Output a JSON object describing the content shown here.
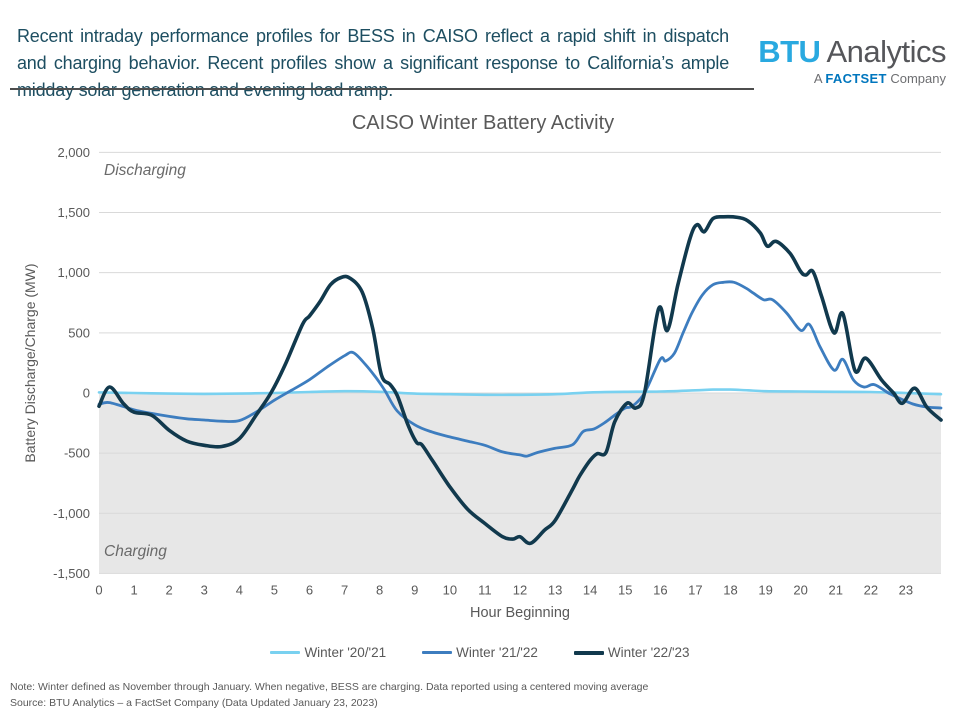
{
  "header": {
    "summary": "Recent intraday performance profiles for BESS in CAISO reflect a rapid shift in dispatch and charging behavior. Recent profiles show a significant response to California’s ample midday solar generation and evening load ramp.",
    "logo": {
      "wordmark_primary": "BTU",
      "wordmark_secondary": "Analytics",
      "tagline_prefix": "A",
      "tagline_brand": "FACTSET",
      "tagline_suffix": "Company"
    }
  },
  "footer": {
    "note": "Note:  Winter defined as November  through January. When negative,  BESS  are charging. Data reported  using a centered  moving average",
    "source": "Source: BTU Analytics – a FactSet Company (Data Updated January 23, 2023)"
  },
  "chart_data": {
    "type": "line",
    "title": "CAISO Winter Battery Activity",
    "xlabel": "Hour Beginning",
    "ylabel": "Battery Discharge/Charge (MW)",
    "xlim": [
      0,
      24
    ],
    "ylim": [
      -1500,
      2000
    ],
    "grid": "horizontal",
    "legend_position": "bottom",
    "gridline_color": "#d9d9d9",
    "tick_color": "#595959",
    "x_ticks": [
      0,
      1,
      2,
      3,
      4,
      5,
      6,
      7,
      8,
      9,
      10,
      11,
      12,
      13,
      14,
      15,
      16,
      17,
      18,
      19,
      20,
      21,
      22,
      23
    ],
    "y_ticks": [
      {
        "value": 2000,
        "label": "2,000"
      },
      {
        "value": 1500,
        "label": "1,500"
      },
      {
        "value": 1000,
        "label": "1,000"
      },
      {
        "value": 500,
        "label": "500"
      },
      {
        "value": 0,
        "label": "0"
      },
      {
        "value": -500,
        "label": "-500"
      },
      {
        "value": -1000,
        "label": "-1,000"
      },
      {
        "value": -1500,
        "label": "-1,500"
      }
    ],
    "annotations": [
      {
        "text": "Discharging",
        "position": "upper-left"
      },
      {
        "text": "Charging",
        "position": "lower-left"
      }
    ],
    "charging_region": {
      "from": 0,
      "to": -1500,
      "color": "#e7e7e7"
    },
    "series": [
      {
        "name": "Winter '20/'21",
        "color": "#79d1f0",
        "width": 2.6,
        "points": [
          [
            0,
            5
          ],
          [
            1,
            0
          ],
          [
            2,
            -5
          ],
          [
            3,
            -8
          ],
          [
            4,
            -5
          ],
          [
            5,
            0
          ],
          [
            6,
            8
          ],
          [
            7,
            15
          ],
          [
            8,
            10
          ],
          [
            9,
            -5
          ],
          [
            10,
            -10
          ],
          [
            11,
            -15
          ],
          [
            12,
            -15
          ],
          [
            13,
            -10
          ],
          [
            14,
            5
          ],
          [
            15,
            10
          ],
          [
            16,
            12
          ],
          [
            17,
            22
          ],
          [
            17.5,
            28
          ],
          [
            18,
            28
          ],
          [
            18.5,
            22
          ],
          [
            19,
            15
          ],
          [
            20,
            12
          ],
          [
            21,
            10
          ],
          [
            22,
            8
          ],
          [
            23,
            0
          ],
          [
            24,
            -10
          ]
        ]
      },
      {
        "name": "Winter '21/'22",
        "color": "#3d7dbf",
        "width": 2.8,
        "points": [
          [
            0,
            -95
          ],
          [
            0.3,
            -80
          ],
          [
            1,
            -140
          ],
          [
            1.5,
            -170
          ],
          [
            2,
            -195
          ],
          [
            2.5,
            -215
          ],
          [
            3,
            -225
          ],
          [
            3.5,
            -235
          ],
          [
            4,
            -230
          ],
          [
            4.5,
            -155
          ],
          [
            5,
            -60
          ],
          [
            5.5,
            25
          ],
          [
            6,
            110
          ],
          [
            6.5,
            215
          ],
          [
            7,
            310
          ],
          [
            7.25,
            335
          ],
          [
            7.6,
            235
          ],
          [
            7.9,
            125
          ],
          [
            8.15,
            20
          ],
          [
            8.5,
            -150
          ],
          [
            9,
            -265
          ],
          [
            9.5,
            -325
          ],
          [
            10,
            -365
          ],
          [
            10.5,
            -400
          ],
          [
            11,
            -435
          ],
          [
            11.5,
            -490
          ],
          [
            12,
            -515
          ],
          [
            12.2,
            -525
          ],
          [
            12.5,
            -495
          ],
          [
            13,
            -460
          ],
          [
            13.5,
            -430
          ],
          [
            13.8,
            -320
          ],
          [
            14.1,
            -300
          ],
          [
            14.4,
            -250
          ],
          [
            14.7,
            -185
          ],
          [
            15,
            -125
          ],
          [
            15.2,
            -110
          ],
          [
            15.55,
            0
          ],
          [
            16,
            280
          ],
          [
            16.15,
            265
          ],
          [
            16.4,
            330
          ],
          [
            16.65,
            500
          ],
          [
            16.9,
            665
          ],
          [
            17.2,
            815
          ],
          [
            17.5,
            900
          ],
          [
            17.8,
            920
          ],
          [
            18.1,
            920
          ],
          [
            18.45,
            870
          ],
          [
            18.65,
            830
          ],
          [
            18.95,
            775
          ],
          [
            19.2,
            775
          ],
          [
            19.6,
            665
          ],
          [
            20,
            520
          ],
          [
            20.25,
            570
          ],
          [
            20.55,
            385
          ],
          [
            20.95,
            190
          ],
          [
            21.2,
            280
          ],
          [
            21.5,
            110
          ],
          [
            21.8,
            50
          ],
          [
            22.1,
            70
          ],
          [
            22.5,
            0
          ],
          [
            22.8,
            -42
          ],
          [
            23.2,
            -92
          ],
          [
            23.6,
            -117
          ],
          [
            24,
            -125
          ]
        ]
      },
      {
        "name": "Winter '22/'23",
        "color": "#11394d",
        "width": 3.6,
        "points": [
          [
            0,
            -110
          ],
          [
            0.3,
            50
          ],
          [
            0.7,
            -90
          ],
          [
            1,
            -160
          ],
          [
            1.5,
            -185
          ],
          [
            2,
            -310
          ],
          [
            2.5,
            -400
          ],
          [
            3,
            -435
          ],
          [
            3.5,
            -445
          ],
          [
            4,
            -380
          ],
          [
            4.5,
            -175
          ],
          [
            4.9,
            0
          ],
          [
            5.3,
            230
          ],
          [
            5.8,
            570
          ],
          [
            6,
            640
          ],
          [
            6.3,
            760
          ],
          [
            6.6,
            900
          ],
          [
            6.9,
            960
          ],
          [
            7.15,
            955
          ],
          [
            7.5,
            840
          ],
          [
            7.8,
            540
          ],
          [
            8.05,
            150
          ],
          [
            8.3,
            70
          ],
          [
            8.5,
            -20
          ],
          [
            8.8,
            -260
          ],
          [
            9.05,
            -410
          ],
          [
            9.2,
            -430
          ],
          [
            9.5,
            -560
          ],
          [
            10,
            -780
          ],
          [
            10.5,
            -965
          ],
          [
            11,
            -1085
          ],
          [
            11.5,
            -1195
          ],
          [
            11.8,
            -1215
          ],
          [
            12,
            -1195
          ],
          [
            12.3,
            -1250
          ],
          [
            12.7,
            -1140
          ],
          [
            13,
            -1060
          ],
          [
            13.5,
            -800
          ],
          [
            13.7,
            -690
          ],
          [
            14,
            -560
          ],
          [
            14.2,
            -505
          ],
          [
            14.45,
            -495
          ],
          [
            14.7,
            -240
          ],
          [
            15.05,
            -85
          ],
          [
            15.3,
            -125
          ],
          [
            15.55,
            0
          ],
          [
            15.95,
            700
          ],
          [
            16.2,
            520
          ],
          [
            16.5,
            900
          ],
          [
            16.85,
            1290
          ],
          [
            17.05,
            1400
          ],
          [
            17.25,
            1340
          ],
          [
            17.5,
            1450
          ],
          [
            17.8,
            1465
          ],
          [
            18.2,
            1460
          ],
          [
            18.5,
            1430
          ],
          [
            18.85,
            1330
          ],
          [
            19.05,
            1220
          ],
          [
            19.3,
            1260
          ],
          [
            19.7,
            1160
          ],
          [
            20,
            1010
          ],
          [
            20.15,
            980
          ],
          [
            20.35,
            1010
          ],
          [
            20.6,
            800
          ],
          [
            20.95,
            500
          ],
          [
            21.2,
            660
          ],
          [
            21.55,
            185
          ],
          [
            21.85,
            290
          ],
          [
            22.3,
            110
          ],
          [
            22.65,
            0
          ],
          [
            22.9,
            -85
          ],
          [
            23.25,
            40
          ],
          [
            23.6,
            -120
          ],
          [
            24,
            -225
          ]
        ]
      }
    ]
  }
}
